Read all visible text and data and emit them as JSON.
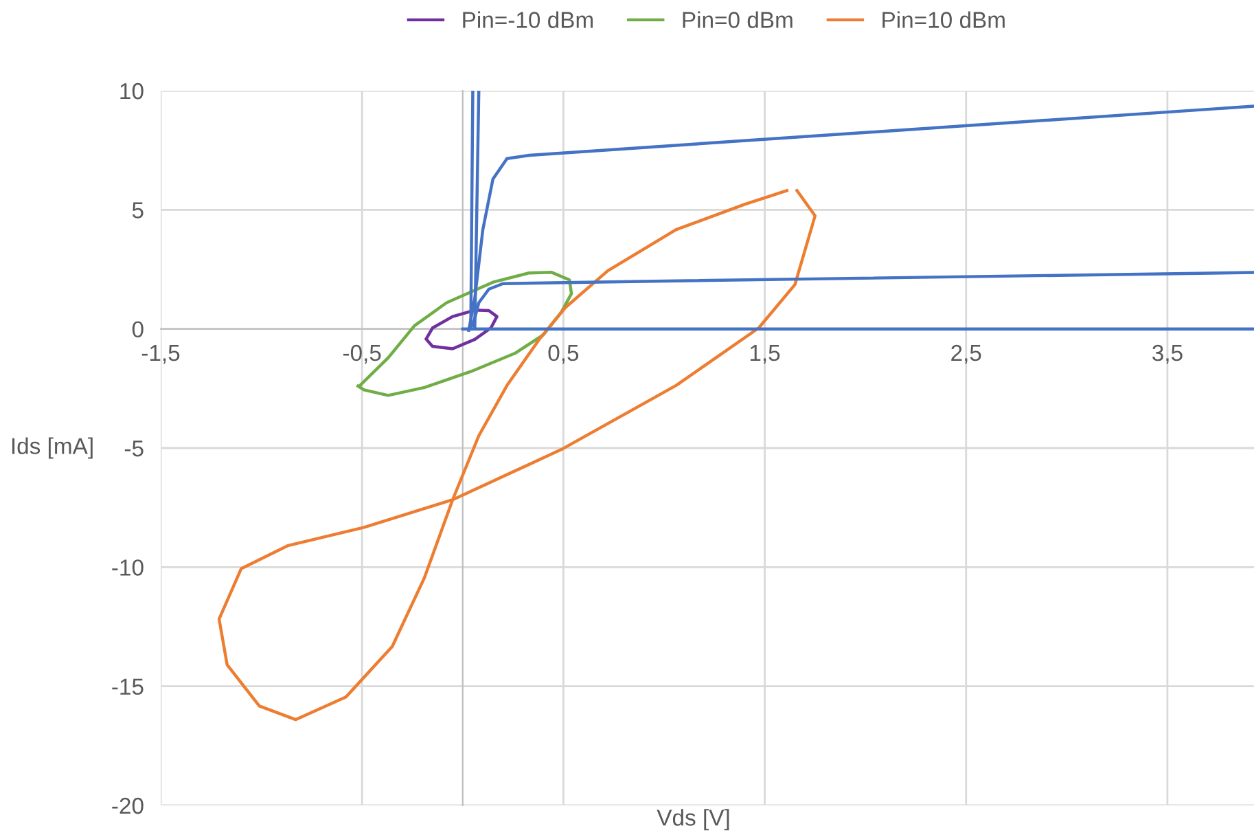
{
  "chart_data": {
    "type": "line",
    "xlabel": "Vds [V]",
    "ylabel": "Ids [mA]",
    "xlim": [
      -1.5,
      3.93
    ],
    "ylim": [
      -20,
      10
    ],
    "xticks": [
      {
        "value": -1.5,
        "label": "-1,5"
      },
      {
        "value": -0.5,
        "label": "-0,5"
      },
      {
        "value": 0.5,
        "label": "0,5"
      },
      {
        "value": 1.5,
        "label": "1,5"
      },
      {
        "value": 2.5,
        "label": "2,5"
      },
      {
        "value": 3.5,
        "label": "3,5"
      }
    ],
    "yticks": [
      -20,
      -15,
      -10,
      -5,
      0,
      5,
      10
    ],
    "grid": true,
    "legend": "top",
    "marker": "none",
    "line_style": "solid",
    "series": [
      {
        "name": "Pin=-10 dBm",
        "color": "#7030a0",
        "x": [
          -0.18,
          -0.15,
          -0.05,
          0.06,
          0.14,
          0.17,
          0.13,
          0.06,
          -0.05,
          -0.15,
          -0.18
        ],
        "values": [
          -0.44,
          -0.73,
          -0.83,
          -0.44,
          0.04,
          0.52,
          0.77,
          0.79,
          0.52,
          0.04,
          -0.4
        ]
      },
      {
        "name": "Pin=0 dBm",
        "color": "#70ad47",
        "x": [
          -0.51,
          -0.37,
          -0.24,
          -0.08,
          0.15,
          0.33,
          0.44,
          0.53,
          0.54,
          0.49,
          0.4,
          0.26,
          0.04,
          -0.19,
          -0.37,
          -0.49,
          -0.52
        ],
        "values": [
          -2.37,
          -1.21,
          0.13,
          1.1,
          1.96,
          2.35,
          2.38,
          2.06,
          1.48,
          0.71,
          -0.25,
          -1.02,
          -1.79,
          -2.46,
          -2.79,
          -2.56,
          -2.4
        ]
      },
      {
        "name": "Pin=10 dBm",
        "color": "#ed7d31",
        "x": [
          1.66,
          1.75,
          1.65,
          1.47,
          1.06,
          0.49,
          -0.05,
          -0.49,
          -0.87,
          -1.1,
          -1.21,
          -1.17,
          -1.01,
          -0.83,
          -0.58,
          -0.35,
          -0.19,
          -0.05,
          0.08,
          0.22,
          0.38,
          0.51,
          0.72,
          1.06,
          1.4,
          1.61
        ],
        "values": [
          5.81,
          4.75,
          1.86,
          0.04,
          -2.37,
          -5.06,
          -7.17,
          -8.33,
          -9.1,
          -10.06,
          -12.18,
          -14.1,
          -15.83,
          -16.4,
          -15.45,
          -13.33,
          -10.44,
          -7.17,
          -4.48,
          -2.37,
          -0.44,
          0.9,
          2.44,
          4.17,
          5.23,
          5.81
        ]
      },
      {
        "color": "#4472c4",
        "x": [
          0.03,
          0.06,
          0.1,
          0.15,
          0.22,
          0.33,
          3.93
        ],
        "values": [
          -0.06,
          1.29,
          4.17,
          6.29,
          7.15,
          7.29,
          9.35
        ]
      },
      {
        "color": "#4472c4",
        "x": [
          0.05,
          0.08,
          0.13,
          0.2,
          0.45,
          3.93
        ],
        "values": [
          0.13,
          1.1,
          1.67,
          1.9,
          1.94,
          2.37
        ]
      },
      {
        "color": "#4472c4",
        "x": [
          0.04,
          0.05
        ],
        "values": [
          0,
          10
        ]
      },
      {
        "color": "#4472c4",
        "x": [
          0.06,
          0.08
        ],
        "values": [
          0,
          10
        ]
      },
      {
        "color": "#4472c4",
        "x": [
          0,
          3.93
        ],
        "values": [
          0,
          0
        ]
      }
    ]
  }
}
